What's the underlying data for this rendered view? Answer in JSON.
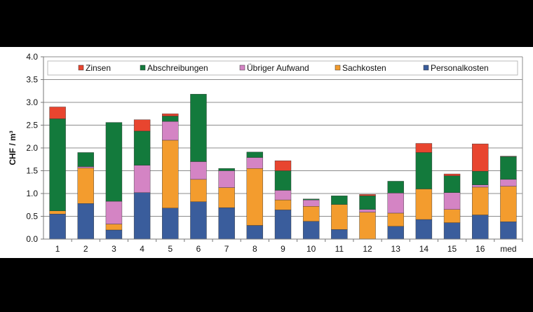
{
  "chart_data": {
    "type": "bar",
    "stacked": true,
    "title": "",
    "xlabel": "",
    "ylabel": "CHF / m³",
    "ylim": [
      0,
      4.0
    ],
    "yticks": [
      "0.0",
      "0.5",
      "1.0",
      "1.5",
      "2.0",
      "2.5",
      "3.0",
      "3.5",
      "4.0"
    ],
    "grid": true,
    "legend_position": "top",
    "categories": [
      "1",
      "2",
      "3",
      "4",
      "5",
      "6",
      "7",
      "8",
      "9",
      "10",
      "11",
      "12",
      "13",
      "14",
      "15",
      "16",
      "med"
    ],
    "series": [
      {
        "name": "Personalkosten",
        "color": "#3a5d9c",
        "values": [
          0.55,
          0.78,
          0.2,
          1.02,
          0.68,
          0.82,
          0.69,
          0.3,
          0.64,
          0.39,
          0.21,
          0.0,
          0.28,
          0.43,
          0.36,
          0.53,
          0.38
        ]
      },
      {
        "name": "Sachkosten",
        "color": "#f39c2e",
        "values": [
          0.07,
          0.78,
          0.13,
          0.0,
          1.49,
          0.49,
          0.44,
          1.25,
          0.22,
          0.33,
          0.55,
          0.59,
          0.29,
          0.67,
          0.29,
          0.61,
          0.78
        ]
      },
      {
        "name": "Übriger Aufwand",
        "color": "#d484c4",
        "values": [
          0.0,
          0.03,
          0.5,
          0.6,
          0.41,
          0.39,
          0.37,
          0.24,
          0.21,
          0.14,
          0.0,
          0.06,
          0.44,
          0.0,
          0.37,
          0.05,
          0.15
        ]
      },
      {
        "name": "Abschreibungen",
        "color": "#137a3c",
        "values": [
          2.02,
          0.31,
          1.73,
          0.75,
          0.12,
          1.48,
          0.05,
          0.12,
          0.43,
          0.02,
          0.19,
          0.3,
          0.26,
          0.8,
          0.37,
          0.3,
          0.5
        ]
      },
      {
        "name": "Zinsen",
        "color": "#e8452f",
        "values": [
          0.26,
          0.0,
          0.0,
          0.25,
          0.05,
          0.0,
          0.0,
          0.0,
          0.22,
          0.0,
          0.0,
          0.03,
          0.0,
          0.2,
          0.04,
          0.6,
          0.01
        ]
      }
    ],
    "legend_order": [
      "Zinsen",
      "Abschreibungen",
      "Übriger Aufwand",
      "Sachkosten",
      "Personalkosten"
    ]
  }
}
